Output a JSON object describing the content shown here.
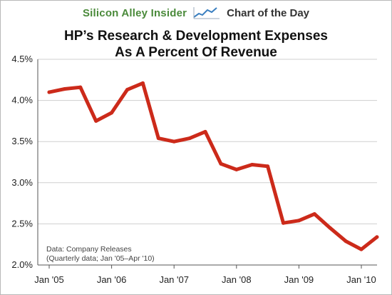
{
  "banner": {
    "brand": "Silicon Alley Insider",
    "tag": "Chart of the Day",
    "icon": "trend-chart-icon"
  },
  "colors": {
    "line": "#cc2a1a",
    "brand": "#4a8a3a",
    "grid": "#cfcfcf",
    "axis": "#555555"
  },
  "notes": {
    "source": "Data: Company Releases",
    "range": "(Quarterly data; Jan '05–Apr '10)"
  },
  "chart_data": {
    "type": "line",
    "title_line1": "HP’s Research & Development Expenses",
    "title_line2": "As A Percent Of Revenue",
    "xlabel": "",
    "ylabel": "",
    "ylim": [
      2.0,
      4.5
    ],
    "yticks": [
      2.0,
      2.5,
      3.0,
      3.5,
      4.0,
      4.5
    ],
    "ytick_labels": [
      "2.0%",
      "2.5%",
      "3.0%",
      "3.5%",
      "4.0%",
      "4.5%"
    ],
    "xticks": [
      0,
      4,
      8,
      12,
      16,
      20
    ],
    "xtick_labels": [
      "Jan '05",
      "Jan '06",
      "Jan '07",
      "Jan '08",
      "Jan '09",
      "Jan '10"
    ],
    "grid": true,
    "series": [
      {
        "values": [
          4.1,
          4.14,
          4.16,
          3.75,
          3.85,
          4.13,
          4.21,
          3.54,
          3.5,
          3.54,
          3.62,
          3.23,
          3.16,
          3.22,
          3.2,
          2.51,
          2.54,
          2.62,
          2.45,
          2.29,
          2.19,
          2.34
        ]
      }
    ]
  }
}
